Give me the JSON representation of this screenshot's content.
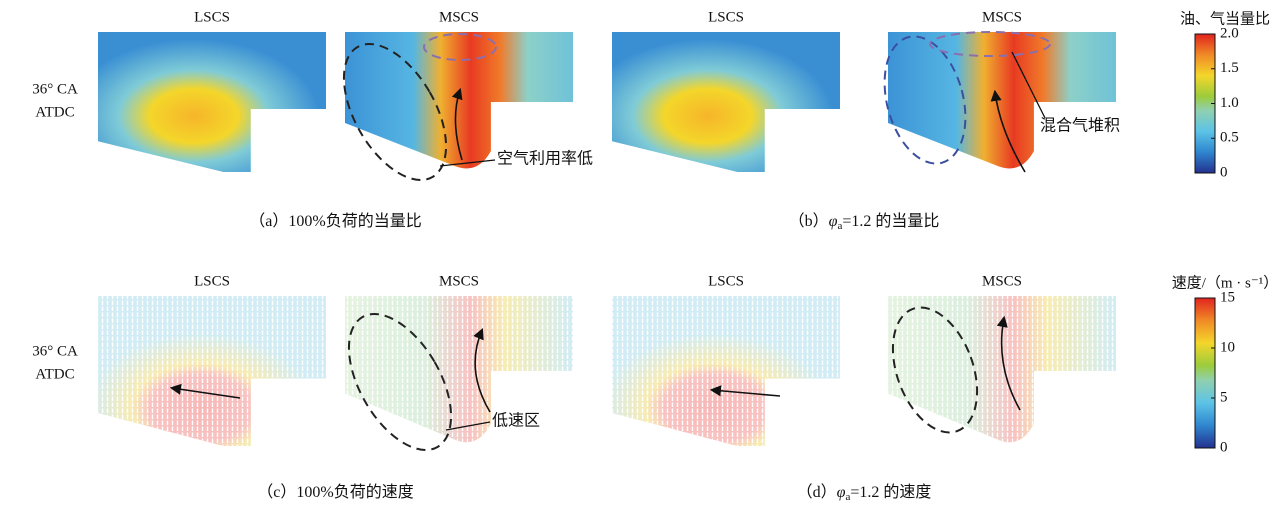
{
  "rows": [
    {
      "time_label": [
        "36° CA",
        "ATDC"
      ],
      "panels": [
        {
          "caption": {
            "prefix": "（a）",
            "text": "100%负荷的当量比"
          },
          "left": "LSCS",
          "right": "MSCS",
          "annotation": "空气利用率低"
        },
        {
          "caption": {
            "prefix": "（b）",
            "symbol": "φ",
            "subscript": "a",
            "text": "=1.2 的当量比"
          },
          "left": "LSCS",
          "right": "MSCS",
          "annotation": "混合气堆积"
        }
      ],
      "colorbar": {
        "title": "油、气当量比",
        "lim": [
          0,
          2
        ],
        "ticks": [
          0,
          {
            "value": 0.5,
            "label": "0.5"
          },
          {
            "value": 1,
            "label": "1.0"
          },
          {
            "value": 1.5,
            "label": "1.5"
          },
          {
            "value": 2,
            "label": "2.0"
          }
        ]
      }
    },
    {
      "time_label": [
        "36° CA",
        "ATDC"
      ],
      "panels": [
        {
          "caption": {
            "prefix": "（c）",
            "text": "100%负荷的速度"
          },
          "left": "LSCS",
          "right": "MSCS",
          "annotation": "低速区"
        },
        {
          "caption": {
            "prefix": "（d）",
            "symbol": "φ",
            "subscript": "a",
            "text": "=1.2 的速度"
          },
          "left": "LSCS",
          "right": "MSCS"
        }
      ],
      "colorbar": {
        "title": "速度/（m · s⁻¹）",
        "lim": [
          0,
          15
        ],
        "ticks": [
          0,
          5,
          10,
          15
        ]
      }
    }
  ]
}
